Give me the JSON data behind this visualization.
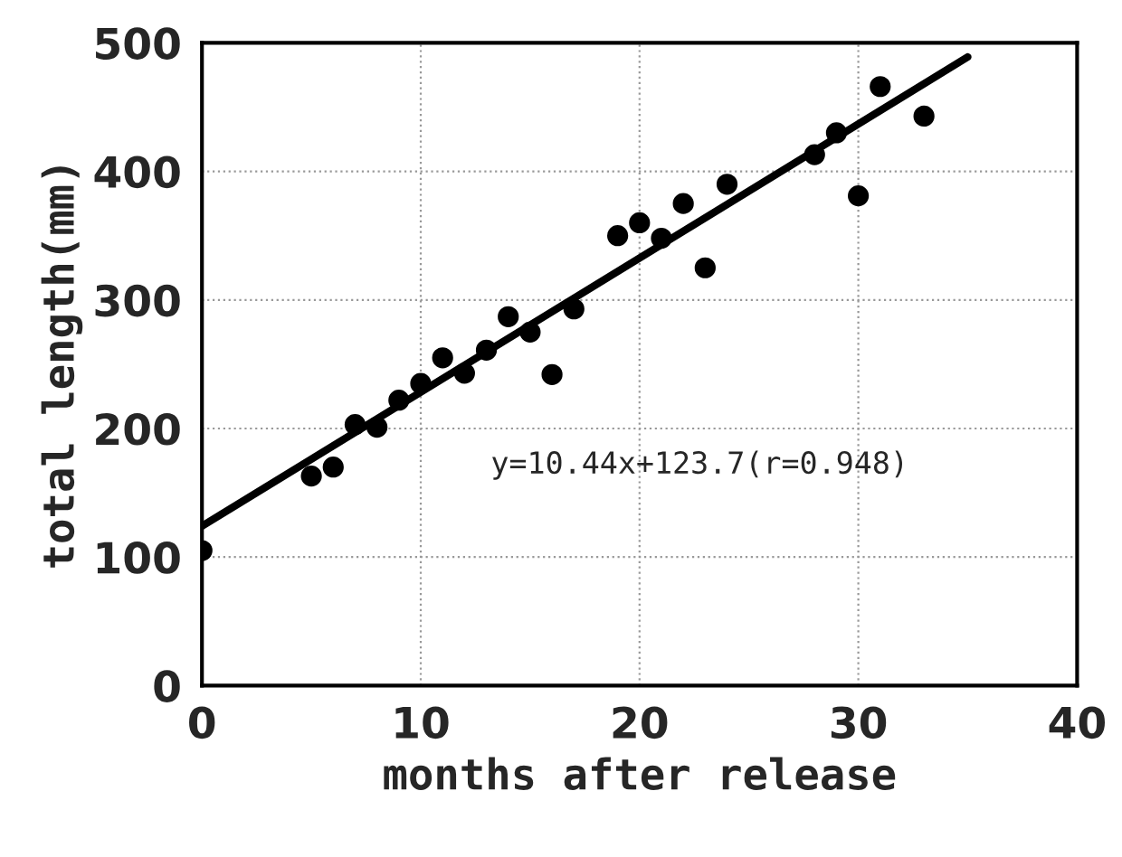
{
  "chart_data": {
    "type": "scatter",
    "xlabel": "months after release",
    "ylabel": "total length(mm)",
    "xlim": [
      0,
      40
    ],
    "ylim": [
      0,
      500
    ],
    "xticks": [
      0,
      10,
      20,
      30,
      40
    ],
    "yticks": [
      0,
      100,
      200,
      300,
      400,
      500
    ],
    "grid": true,
    "series": [
      {
        "marker": "circle",
        "color": "#000000",
        "x": [
          0,
          5,
          6,
          7,
          8,
          9,
          10,
          11,
          12,
          13,
          14,
          15,
          16,
          17,
          19,
          20,
          21,
          22,
          23,
          24,
          28,
          29,
          30,
          31,
          33
        ],
        "values": [
          105,
          163,
          170,
          203,
          201,
          222,
          235,
          255,
          243,
          261,
          287,
          275,
          242,
          293,
          350,
          360,
          348,
          375,
          325,
          390,
          413,
          430,
          381,
          466,
          443
        ]
      },
      {
        "type": "line",
        "color": "#000000",
        "x": [
          0,
          35
        ],
        "values": [
          124,
          489
        ],
        "marker": "none"
      }
    ],
    "annotations": [
      "y=10.44x+123.7(r=0.948)"
    ]
  }
}
